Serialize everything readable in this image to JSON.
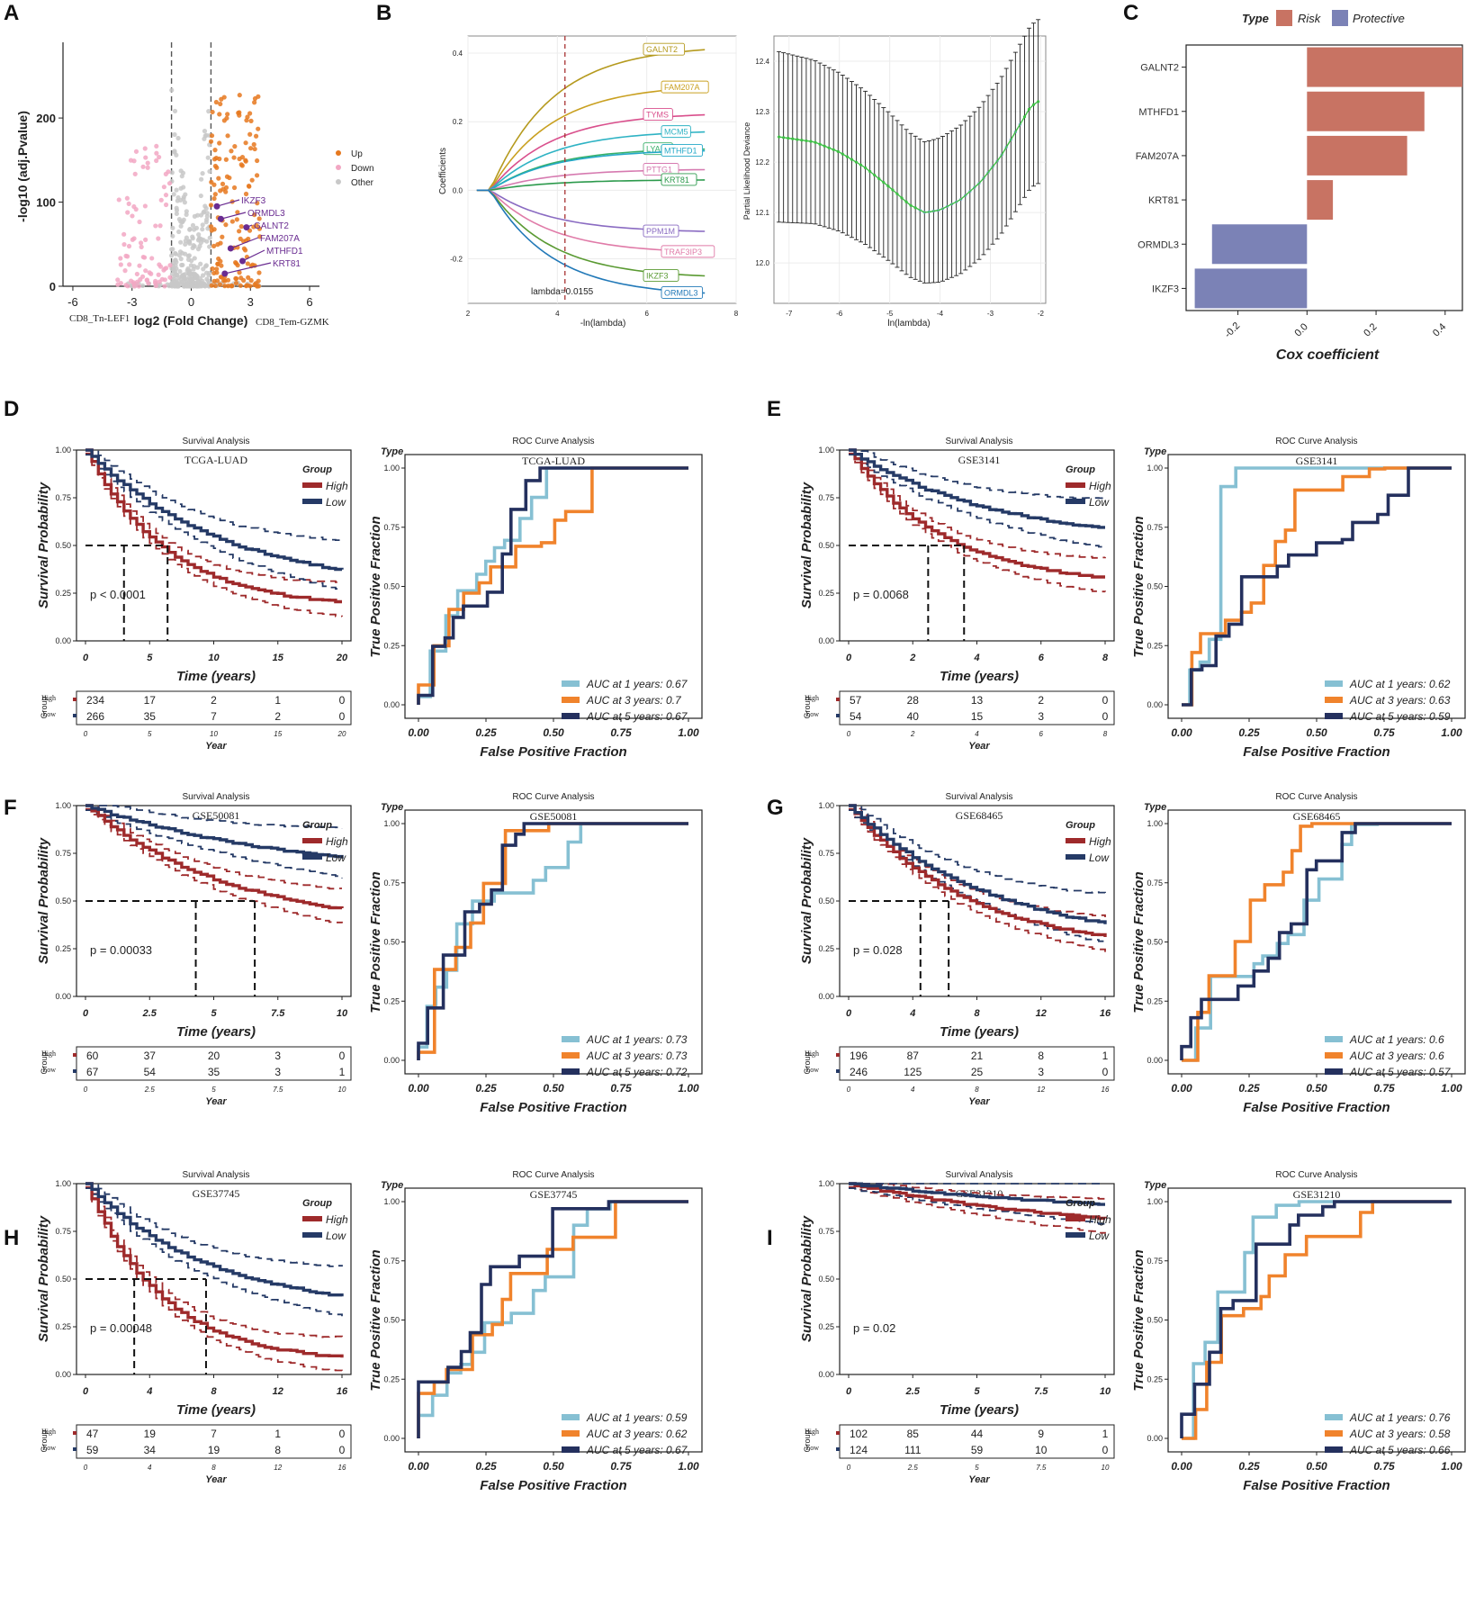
{
  "colors": {
    "high": "#9e2a2b",
    "low": "#253a66",
    "up": "#e6781e",
    "down": "#f2a7c3",
    "other": "#c8c8c8",
    "risk": "#c87363",
    "protective": "#7b82b6",
    "auc1": "#86c0d3",
    "auc3": "#f0832c",
    "auc5": "#24305e",
    "sel": "#6a2c91"
  },
  "chart_data": [
    {
      "panel": "A",
      "type": "scatter",
      "xlabel": "log2 (Fold Change)",
      "ylabel": "-log10 (adj.Pvalue)",
      "xlim": [
        -6.5,
        6.5
      ],
      "ylim": [
        0,
        290
      ],
      "xticks": [
        -6,
        -3,
        0,
        3,
        6
      ],
      "yticks": [
        0,
        100,
        200
      ],
      "xticklabels": [
        "-6",
        "-3",
        "0",
        "3",
        "6"
      ],
      "yticklabels": [
        "0",
        "100",
        "200"
      ],
      "cutoffs": [
        -1,
        1
      ],
      "left_label": "CD8_Tn-LEF1",
      "right_label": "CD8_Tem-GZMK",
      "legend": [
        "Up",
        "Down",
        "Other"
      ],
      "labels": [
        {
          "gene": "IKZF3",
          "x": 1.3,
          "y": 95
        },
        {
          "gene": "ORMDL3",
          "x": 1.5,
          "y": 80
        },
        {
          "gene": "GALNT2",
          "x": 2.8,
          "y": 70
        },
        {
          "gene": "FAM207A",
          "x": 2.0,
          "y": 45
        },
        {
          "gene": "MTHFD1",
          "x": 2.6,
          "y": 30
        },
        {
          "gene": "KRT81",
          "x": 1.7,
          "y": 15
        }
      ]
    },
    {
      "panel": "B1",
      "type": "line",
      "xlabel": "-ln(lambda)",
      "ylabel": "Coefficients",
      "xlim": [
        2,
        8
      ],
      "ylim": [
        -0.33,
        0.45
      ],
      "xticks": [
        2,
        4,
        6,
        8
      ],
      "yticks": [
        -0.2,
        0,
        0.2,
        0.4
      ],
      "xticklabels": [
        "2",
        "4",
        "6",
        "8"
      ],
      "yticklabels": [
        "-0.2",
        "0.0",
        "0.2",
        "0.4"
      ],
      "lambda_line": 4.17,
      "lambda_label": "lambda=0.0155",
      "series": [
        {
          "name": "GALNT2",
          "end": 0.41,
          "color": "#b59a1e"
        },
        {
          "name": "FAM207A",
          "end": 0.3,
          "color": "#c9a020"
        },
        {
          "name": "TYMS",
          "end": 0.22,
          "color": "#d94f8c"
        },
        {
          "name": "MCM5",
          "end": 0.17,
          "color": "#2fb3c4"
        },
        {
          "name": "LYAR",
          "end": 0.12,
          "color": "#38b06a"
        },
        {
          "name": "MTHFD1",
          "end": 0.115,
          "color": "#23a8c8"
        },
        {
          "name": "PTTG1",
          "end": 0.06,
          "color": "#d67ab0"
        },
        {
          "name": "KRT81",
          "end": 0.03,
          "color": "#2c9a4c"
        },
        {
          "name": "PPM1M",
          "end": -0.12,
          "color": "#8a6bc2"
        },
        {
          "name": "TRAF3IP3",
          "end": -0.18,
          "color": "#e07ba8"
        },
        {
          "name": "IKZF3",
          "end": -0.25,
          "color": "#5a9a32"
        },
        {
          "name": "ORMDL3",
          "end": -0.3,
          "color": "#2279b8"
        }
      ]
    },
    {
      "panel": "B2",
      "type": "line",
      "xlabel": "ln(lambda)",
      "ylabel": "Partial Likelihood Deviance",
      "xlim": [
        -7.3,
        -1.9
      ],
      "ylim": [
        11.92,
        12.45
      ],
      "xticks": [
        -7,
        -6,
        -5,
        -4,
        -3,
        -2
      ],
      "yticks": [
        12.0,
        12.1,
        12.2,
        12.3,
        12.4
      ],
      "xticklabels": [
        "-7",
        "-6",
        "-5",
        "-4",
        "-3",
        "-2"
      ],
      "yticklabels": [
        "12.0",
        "12.1",
        "12.2",
        "12.3",
        "12.4"
      ],
      "curve": [
        [
          -7.2,
          12.25
        ],
        [
          -6.5,
          12.24
        ],
        [
          -6.0,
          12.22
        ],
        [
          -5.5,
          12.19
        ],
        [
          -5.0,
          12.15
        ],
        [
          -4.6,
          12.115
        ],
        [
          -4.3,
          12.1
        ],
        [
          -4.0,
          12.105
        ],
        [
          -3.6,
          12.125
        ],
        [
          -3.2,
          12.16
        ],
        [
          -2.8,
          12.21
        ],
        [
          -2.5,
          12.26
        ],
        [
          -2.2,
          12.31
        ],
        [
          -2.05,
          12.32
        ]
      ]
    },
    {
      "panel": "C",
      "type": "bar",
      "xlabel": "Cox coefficient",
      "legend_title": "Type",
      "legend": [
        "Risk",
        "Protective"
      ],
      "xlim": [
        -0.35,
        0.45
      ],
      "xticks": [
        -0.2,
        0,
        0.2,
        0.4
      ],
      "xticklabels": [
        "-0.2",
        "0.0",
        "0.2",
        "0.4"
      ],
      "categories": [
        "GALNT2",
        "MTHFD1",
        "FAM207A",
        "KRT81",
        "ORMDL3",
        "IKZF3"
      ],
      "values": [
        0.45,
        0.34,
        0.29,
        0.075,
        -0.275,
        -0.325
      ]
    }
  ],
  "km_panels": [
    {
      "panel": "D",
      "dataset": "TCGA-LUAD",
      "pvalue": "p < 0.0001",
      "xmax": 20,
      "xticks": [
        "0",
        "5",
        "10",
        "15",
        "20"
      ],
      "risk_high": [
        "234",
        "17",
        "2",
        "1",
        "0"
      ],
      "risk_low": [
        "266",
        "35",
        "7",
        "2",
        "0"
      ],
      "auc": [
        "AUC at 1 years: 0.67",
        "AUC at 3 years: 0.7",
        "AUC at 5 years: 0.67"
      ]
    },
    {
      "panel": "E",
      "dataset": "GSE3141",
      "pvalue": "p = 0.0068",
      "xmax": 8,
      "xticks": [
        "0",
        "2",
        "4",
        "6",
        "8"
      ],
      "risk_high": [
        "57",
        "28",
        "13",
        "2",
        "0"
      ],
      "risk_low": [
        "54",
        "40",
        "15",
        "3",
        "0"
      ],
      "auc": [
        "AUC at 1 years: 0.62",
        "AUC at 3 years: 0.63",
        "AUC at 5 years: 0.59"
      ]
    },
    {
      "panel": "F",
      "dataset": "GSE50081",
      "pvalue": "p = 0.00033",
      "xmax": 10,
      "xticks": [
        "0",
        "2.5",
        "5",
        "7.5",
        "10"
      ],
      "risk_high": [
        "60",
        "37",
        "20",
        "3",
        "0"
      ],
      "risk_low": [
        "67",
        "54",
        "35",
        "3",
        "1"
      ],
      "auc": [
        "AUC at 1 years: 0.73",
        "AUC at 3 years: 0.73",
        "AUC at 5 years: 0.72"
      ]
    },
    {
      "panel": "G",
      "dataset": "GSE68465",
      "pvalue": "p = 0.028",
      "xmax": 16,
      "xticks": [
        "0",
        "4",
        "8",
        "12",
        "16"
      ],
      "risk_high": [
        "196",
        "87",
        "21",
        "8",
        "1"
      ],
      "risk_low": [
        "246",
        "125",
        "25",
        "3",
        "0"
      ],
      "auc": [
        "AUC at 1 years: 0.6",
        "AUC at 3 years: 0.6",
        "AUC at 5 years: 0.57"
      ]
    },
    {
      "panel": "H",
      "dataset": "GSE37745",
      "pvalue": "p = 0.00048",
      "xmax": 16,
      "xticks": [
        "0",
        "4",
        "8",
        "12",
        "16"
      ],
      "risk_high": [
        "47",
        "19",
        "7",
        "1",
        "0"
      ],
      "risk_low": [
        "59",
        "34",
        "19",
        "8",
        "0"
      ],
      "auc": [
        "AUC at 1 years: 0.59",
        "AUC at 3 years: 0.62",
        "AUC at 5 years: 0.67"
      ]
    },
    {
      "panel": "I",
      "dataset": "GSE31210",
      "pvalue": "p = 0.02",
      "xmax": 10,
      "xticks": [
        "0",
        "2.5",
        "5",
        "7.5",
        "10"
      ],
      "risk_high": [
        "102",
        "85",
        "44",
        "9",
        "1"
      ],
      "risk_low": [
        "124",
        "111",
        "59",
        "10",
        "0"
      ],
      "auc": [
        "AUC at 1 years: 0.76",
        "AUC at 3 years: 0.58",
        "AUC at 5 years: 0.66"
      ]
    }
  ],
  "labels": {
    "survival_title": "Survival Analysis",
    "roc_title": "ROC Curve Analysis",
    "survival_y": "Survival Probability",
    "survival_x": "Time (years)",
    "risk_x": "Year",
    "risk_y": "Group",
    "high": "High",
    "low": "Low",
    "group": "Group",
    "roc_y": "True Positive Fraction",
    "roc_x": "False Positive Fraction",
    "roc_type": "Type",
    "prob_ticks": [
      "0.00",
      "0.25",
      "0.50",
      "0.75",
      "1.00"
    ],
    "legend_up": "Up",
    "legend_down": "Down",
    "legend_other": "Other"
  }
}
